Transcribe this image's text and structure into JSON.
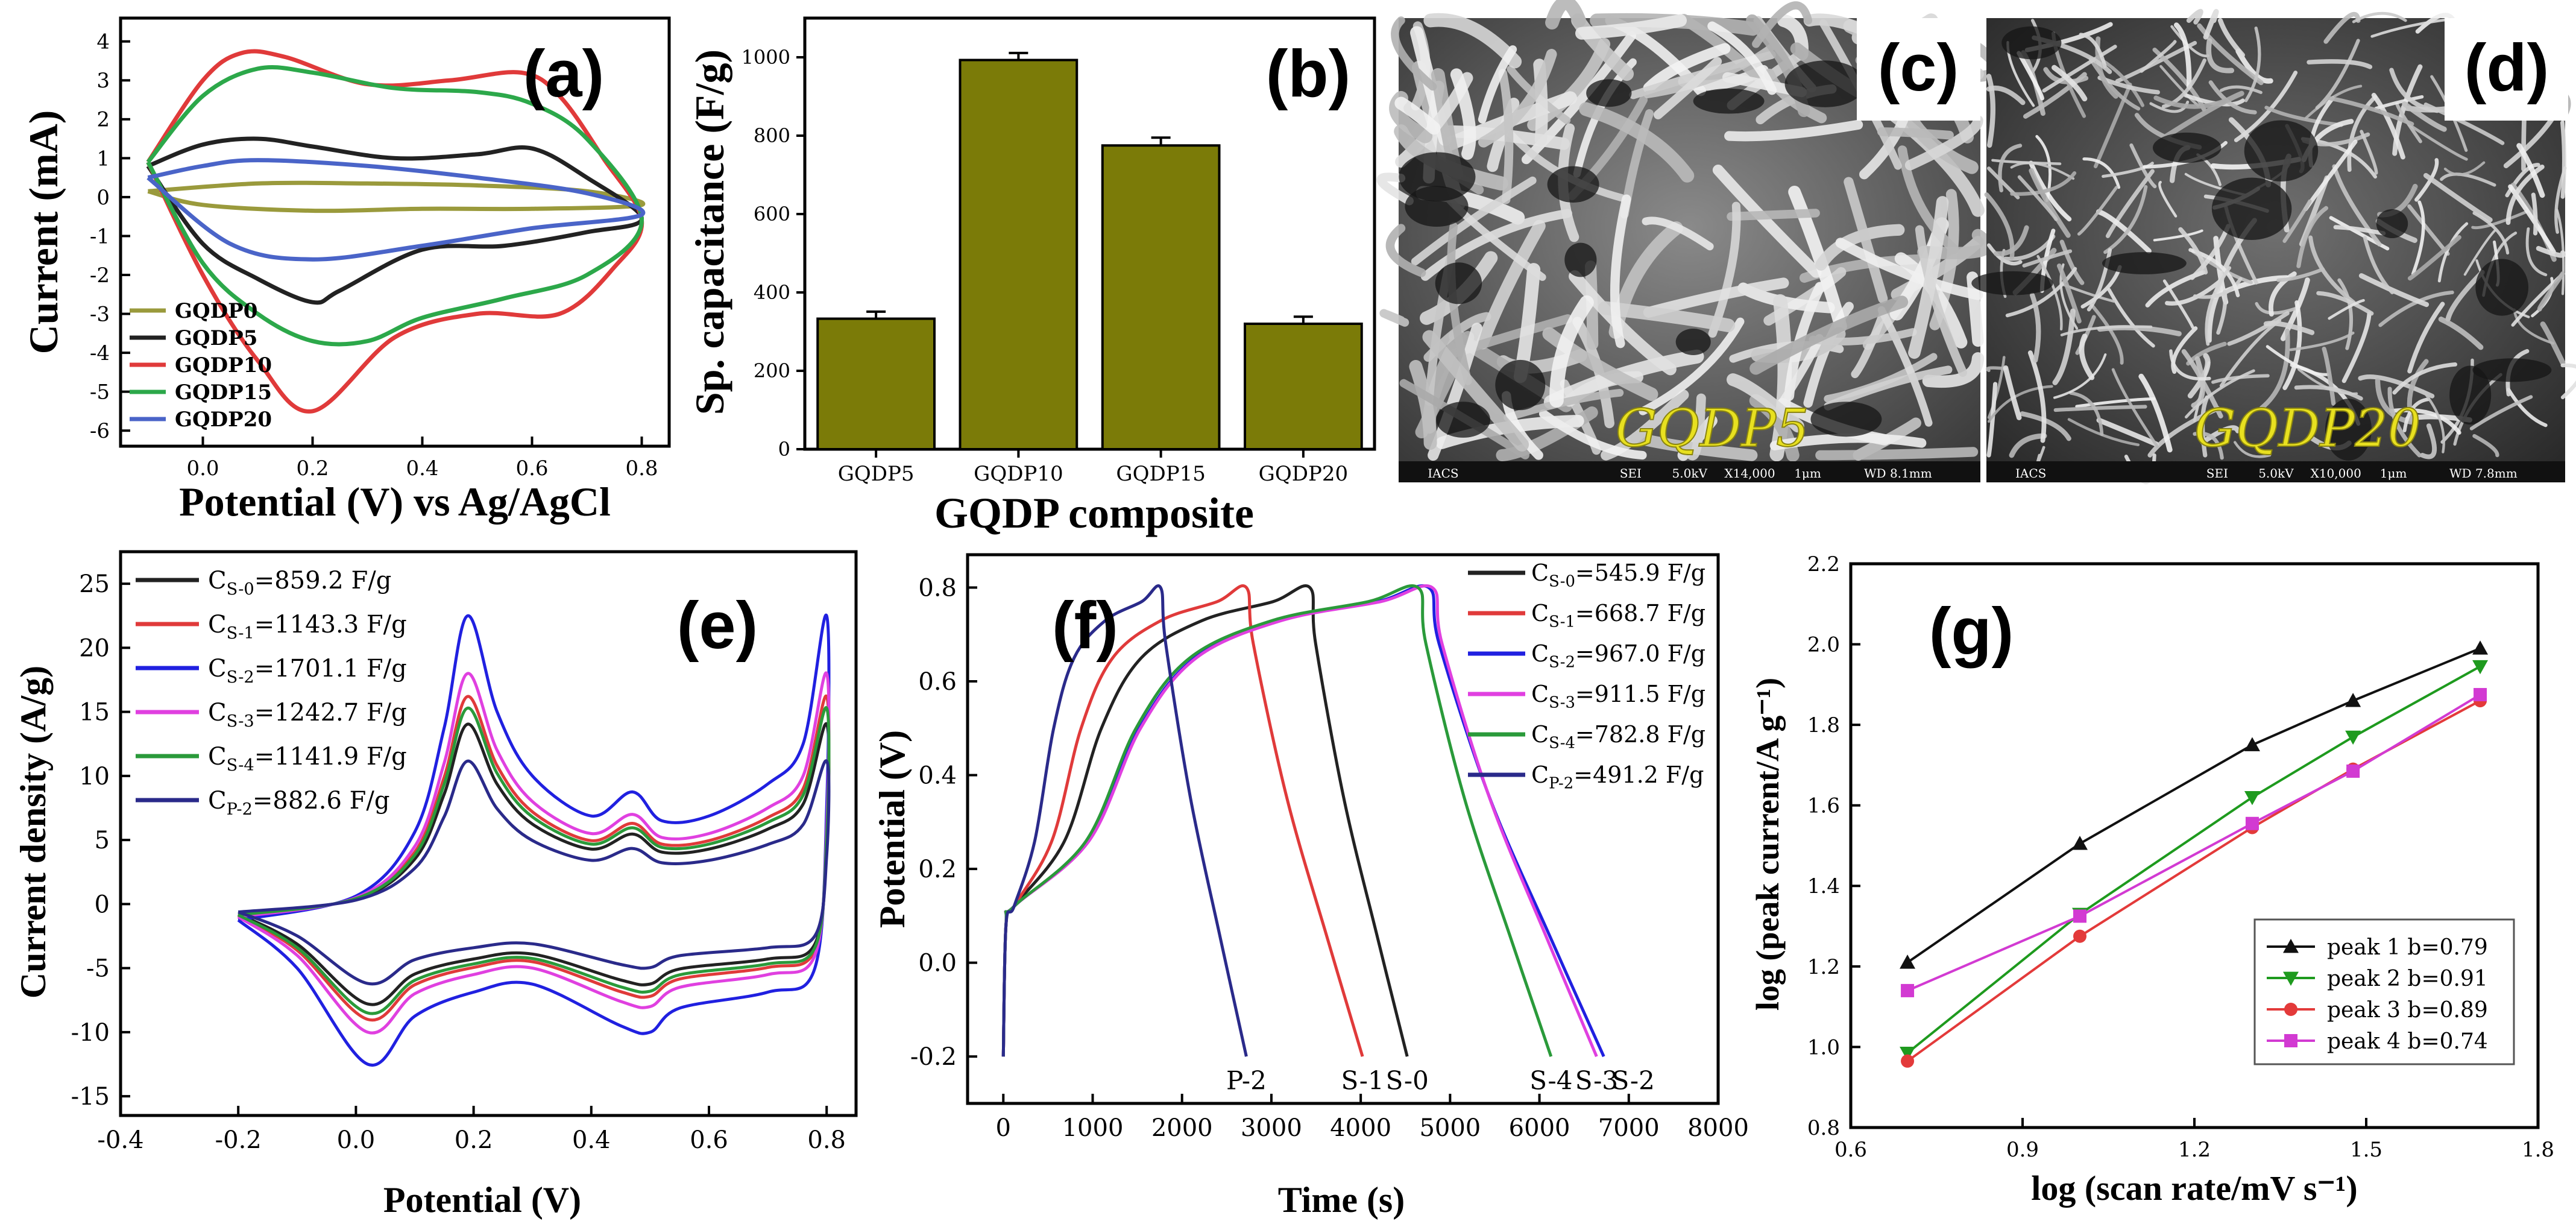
{
  "chart_data": [
    {
      "panel": "a",
      "type": "line",
      "title": "(a)",
      "xlabel": "Potential (V) vs Ag/AgCl",
      "ylabel": "Current (mA)",
      "xlim": [
        -0.15,
        0.85
      ],
      "ylim": [
        -6.4,
        4.6
      ],
      "xticks": [
        "0.0",
        "0.2",
        "0.4",
        "0.6",
        "0.8"
      ],
      "yticks": [
        "-6",
        "-5",
        "-4",
        "-3",
        "-2",
        "-1",
        "0",
        "1",
        "2",
        "3",
        "4"
      ],
      "series": [
        {
          "name": "GQDP0",
          "color": "#9a9a3c",
          "points": [
            [
              -0.1,
              0.15
            ],
            [
              0.1,
              0.35
            ],
            [
              0.3,
              0.35
            ],
            [
              0.5,
              0.3
            ],
            [
              0.7,
              0.15
            ],
            [
              0.8,
              -0.2
            ],
            [
              0.6,
              -0.3
            ],
            [
              0.4,
              -0.3
            ],
            [
              0.2,
              -0.35
            ],
            [
              0.0,
              -0.2
            ],
            [
              -0.1,
              0.15
            ]
          ]
        },
        {
          "name": "GQDP5",
          "color": "#222222",
          "points": [
            [
              -0.1,
              0.8
            ],
            [
              0.0,
              1.35
            ],
            [
              0.1,
              1.5
            ],
            [
              0.2,
              1.3
            ],
            [
              0.35,
              1.0
            ],
            [
              0.5,
              1.1
            ],
            [
              0.6,
              1.25
            ],
            [
              0.7,
              0.5
            ],
            [
              0.8,
              -0.55
            ],
            [
              0.7,
              -0.9
            ],
            [
              0.55,
              -1.25
            ],
            [
              0.4,
              -1.35
            ],
            [
              0.25,
              -2.4
            ],
            [
              0.2,
              -2.7
            ],
            [
              0.1,
              -2.1
            ],
            [
              0.0,
              -1.2
            ],
            [
              -0.1,
              0.8
            ]
          ]
        },
        {
          "name": "GQDP10",
          "color": "#e03a3a",
          "points": [
            [
              -0.1,
              0.9
            ],
            [
              0.0,
              3.0
            ],
            [
              0.07,
              3.7
            ],
            [
              0.15,
              3.6
            ],
            [
              0.3,
              2.9
            ],
            [
              0.45,
              3.0
            ],
            [
              0.58,
              3.2
            ],
            [
              0.65,
              2.6
            ],
            [
              0.73,
              1.0
            ],
            [
              0.8,
              -0.6
            ],
            [
              0.75,
              -1.8
            ],
            [
              0.65,
              -3.0
            ],
            [
              0.5,
              -3.0
            ],
            [
              0.35,
              -3.6
            ],
            [
              0.2,
              -5.5
            ],
            [
              0.1,
              -4.2
            ],
            [
              0.0,
              -2.0
            ],
            [
              -0.1,
              0.9
            ]
          ]
        },
        {
          "name": "GQDP15",
          "color": "#2ca84a",
          "points": [
            [
              -0.1,
              0.9
            ],
            [
              0.0,
              2.6
            ],
            [
              0.1,
              3.3
            ],
            [
              0.2,
              3.2
            ],
            [
              0.35,
              2.8
            ],
            [
              0.5,
              2.7
            ],
            [
              0.6,
              2.4
            ],
            [
              0.7,
              1.5
            ],
            [
              0.8,
              -0.6
            ],
            [
              0.7,
              -2.0
            ],
            [
              0.55,
              -2.6
            ],
            [
              0.4,
              -3.1
            ],
            [
              0.3,
              -3.7
            ],
            [
              0.2,
              -3.7
            ],
            [
              0.1,
              -3.0
            ],
            [
              0.0,
              -1.7
            ],
            [
              -0.1,
              0.9
            ]
          ]
        },
        {
          "name": "GQDP20",
          "color": "#4a64c8",
          "points": [
            [
              -0.1,
              0.5
            ],
            [
              0.0,
              0.8
            ],
            [
              0.1,
              0.95
            ],
            [
              0.3,
              0.8
            ],
            [
              0.5,
              0.5
            ],
            [
              0.7,
              0.1
            ],
            [
              0.8,
              -0.45
            ],
            [
              0.6,
              -0.8
            ],
            [
              0.4,
              -1.25
            ],
            [
              0.2,
              -1.6
            ],
            [
              0.05,
              -1.2
            ],
            [
              -0.1,
              0.5
            ]
          ]
        }
      ]
    },
    {
      "panel": "b",
      "type": "bar",
      "title": "(b)",
      "xlabel": "GQDP composite",
      "ylabel": "Sp. capacitance (F/g)",
      "categories": [
        "GQDP5",
        "GQDP10",
        "GQDP15",
        "GQDP20"
      ],
      "values": [
        333,
        993,
        775,
        320
      ],
      "errors": [
        18,
        18,
        20,
        18
      ],
      "color": "#7b7b08",
      "ylim": [
        0,
        1100
      ],
      "yticks": [
        "0",
        "200",
        "400",
        "600",
        "800",
        "1000"
      ]
    },
    {
      "panel": "e",
      "type": "line",
      "title": "(e)",
      "xlabel": "Potential (V)",
      "ylabel": "Current density (A/g)",
      "xlim": [
        -0.4,
        0.85
      ],
      "ylim": [
        -16.5,
        27.5
      ],
      "xticks": [
        "-0.4",
        "-0.2",
        "0.0",
        "0.2",
        "0.4",
        "0.6",
        "0.8"
      ],
      "yticks": [
        "-15",
        "-10",
        "-5",
        "0",
        "5",
        "10",
        "15",
        "20",
        "25"
      ],
      "legend": [
        "C_S-0=859.2 F/g",
        "C_S-1=1143.3 F/g",
        "C_S-2=1701.1 F/g",
        "C_S-3=1242.7 F/g",
        "C_S-4=1141.9 F/g",
        "C_P-2=882.6 F/g"
      ],
      "series": [
        {
          "name": "S-0",
          "color": "#222222",
          "scale": 0.78
        },
        {
          "name": "S-1",
          "color": "#e03a3a",
          "scale": 0.9
        },
        {
          "name": "S-2",
          "color": "#2020e0",
          "scale": 1.25
        },
        {
          "name": "S-3",
          "color": "#e040e0",
          "scale": 1.0
        },
        {
          "name": "S-4",
          "color": "#2a9a3a",
          "scale": 0.85
        },
        {
          "name": "P-2",
          "color": "#2a2a8a",
          "scale": 0.62
        }
      ],
      "base_curve": [
        [
          -0.2,
          -1.0
        ],
        [
          0.0,
          0.5
        ],
        [
          0.1,
          4.5
        ],
        [
          0.15,
          11
        ],
        [
          0.19,
          18
        ],
        [
          0.24,
          12
        ],
        [
          0.3,
          8
        ],
        [
          0.4,
          5.5
        ],
        [
          0.47,
          7
        ],
        [
          0.52,
          5.2
        ],
        [
          0.6,
          5.5
        ],
        [
          0.7,
          7.5
        ],
        [
          0.76,
          10
        ],
        [
          0.8,
          18
        ],
        [
          0.8,
          6
        ],
        [
          0.78,
          -4
        ],
        [
          0.7,
          -5.5
        ],
        [
          0.55,
          -6.5
        ],
        [
          0.5,
          -8
        ],
        [
          0.45,
          -7.6
        ],
        [
          0.3,
          -5
        ],
        [
          0.2,
          -5.5
        ],
        [
          0.1,
          -7
        ],
        [
          0.02,
          -10
        ],
        [
          -0.1,
          -4
        ],
        [
          -0.2,
          -1.0
        ]
      ]
    },
    {
      "panel": "f",
      "type": "line",
      "title": "(f)",
      "xlabel": "Time (s)",
      "ylabel": "Potential (V)",
      "xlim": [
        -400,
        8000
      ],
      "ylim": [
        -0.3,
        0.87
      ],
      "xticks": [
        "0",
        "1000",
        "2000",
        "3000",
        "4000",
        "5000",
        "6000",
        "7000",
        "8000"
      ],
      "yticks": [
        "-0.2",
        "0.0",
        "0.2",
        "0.4",
        "0.6",
        "0.8"
      ],
      "legend": [
        "C_S-0=545.9 F/g",
        "C_S-1=668.7 F/g",
        "C_S-2=967.0 F/g",
        "C_S-3=911.5 F/g",
        "C_S-4=782.8 F/g",
        "C_P-2=491.2 F/g"
      ],
      "curve_labels": [
        "P-2",
        "S-1",
        "S-0",
        "S-4",
        "S-3",
        "S-2"
      ],
      "series": [
        {
          "name": "S-0",
          "color": "#222222",
          "charge_end": 3430,
          "discharge_end": 4520
        },
        {
          "name": "S-1",
          "color": "#e03a3a",
          "charge_end": 2720,
          "discharge_end": 4020
        },
        {
          "name": "S-2",
          "color": "#2020e0",
          "charge_end": 4760,
          "discharge_end": 6720
        },
        {
          "name": "S-3",
          "color": "#e040e0",
          "charge_end": 4800,
          "discharge_end": 6640
        },
        {
          "name": "S-4",
          "color": "#2a9a3a",
          "charge_end": 4640,
          "discharge_end": 6130
        },
        {
          "name": "P-2",
          "color": "#2a2a8a",
          "charge_end": 1760,
          "discharge_end": 2720
        }
      ]
    },
    {
      "panel": "g",
      "type": "line",
      "title": "(g)",
      "xlabel": "log (scan rate/mV s⁻¹)",
      "ylabel": "log (peak current/A g⁻¹)",
      "xlim": [
        0.6,
        1.8
      ],
      "ylim": [
        0.8,
        2.2
      ],
      "xticks": [
        "0.6",
        "0.9",
        "1.2",
        "1.5",
        "1.8"
      ],
      "yticks": [
        "0.8",
        "1.0",
        "1.2",
        "1.4",
        "1.6",
        "1.8",
        "2.0",
        "2.2"
      ],
      "x": [
        0.699,
        1.0,
        1.301,
        1.477,
        1.699
      ],
      "series": [
        {
          "name": "peak 1  b=0.79",
          "color": "#111111",
          "marker": "triangle-up",
          "values": [
            1.21,
            1.505,
            1.75,
            1.86,
            1.99
          ]
        },
        {
          "name": "peak 2  b=0.91",
          "color": "#1e9a1e",
          "marker": "triangle-down",
          "values": [
            0.985,
            1.33,
            1.62,
            1.77,
            1.945
          ]
        },
        {
          "name": "peak 3  b=0.89",
          "color": "#e33a3a",
          "marker": "circle",
          "values": [
            0.965,
            1.275,
            1.545,
            1.69,
            1.86
          ]
        },
        {
          "name": "peak 4  b=0.74",
          "color": "#d23ad2",
          "marker": "square",
          "values": [
            1.14,
            1.325,
            1.555,
            1.685,
            1.875
          ]
        }
      ]
    }
  ],
  "sem": [
    {
      "panel": "c",
      "label": "(c)",
      "sample": "GQDP5",
      "info": [
        "IACS",
        "SEI",
        "5.0kV",
        "X14,000",
        "1μm",
        "WD 8.1mm"
      ]
    },
    {
      "panel": "d",
      "label": "(d)",
      "sample": "GQDP20",
      "info": [
        "IACS",
        "SEI",
        "5.0kV",
        "X10,000",
        "1μm",
        "WD 7.8mm"
      ]
    }
  ],
  "colors": {
    "sem_overlay": "#e8e020",
    "bar_fill": "#7b7b08"
  }
}
